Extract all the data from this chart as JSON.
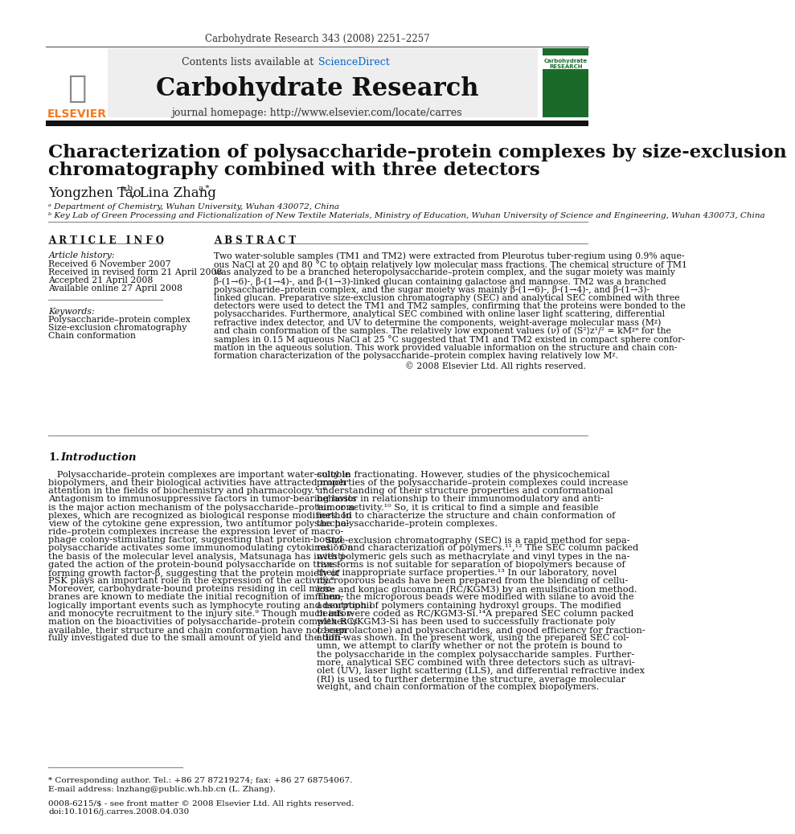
{
  "journal_ref": "Carbohydrate Research 343 (2008) 2251–2257",
  "journal_name": "Carbohydrate Research",
  "contents_text": "Contents lists available at ",
  "science_direct": "ScienceDirect",
  "journal_homepage": "journal homepage: http://www.elsevier.com/locate/carres",
  "title_line1": "Characterization of polysaccharide–protein complexes by size-exclusion",
  "title_line2": "chromatography combined with three detectors",
  "affil_a": "ᵃ Department of Chemistry, Wuhan University, Wuhan 430072, China",
  "affil_b": "ᵇ Key Lab of Green Processing and Fictionalization of New Textile Materials, Ministry of Education, Wuhan University of Science and Engineering, Wuhan 430073, China",
  "article_info_header": "A R T I C L E   I N F O",
  "article_history_label": "Article history:",
  "received1": "Received 6 November 2007",
  "received2": "Received in revised form 21 April 2008",
  "accepted": "Accepted 21 April 2008",
  "available": "Available online 27 April 2008",
  "keywords_label": "Keywords:",
  "keyword1": "Polysaccharide–protein complex",
  "keyword2": "Size-exclusion chromatography",
  "keyword3": "Chain conformation",
  "abstract_header": "A B S T R A C T",
  "copyright": "© 2008 Elsevier Ltd. All rights reserved.",
  "footnote_star": "* Corresponding author. Tel.: +86 27 87219274; fax: +86 27 68754067.",
  "footnote_email": "E-mail address: lnzhang@public.wh.hb.cn (L. Zhang).",
  "footnote_issn": "0008-6215/$ - see front matter © 2008 Elsevier Ltd. All rights reserved.",
  "footnote_doi": "doi:10.1016/j.carres.2008.04.030",
  "bg_color": "#ffffff",
  "elsevier_orange": "#f47920",
  "science_direct_blue": "#0066cc"
}
